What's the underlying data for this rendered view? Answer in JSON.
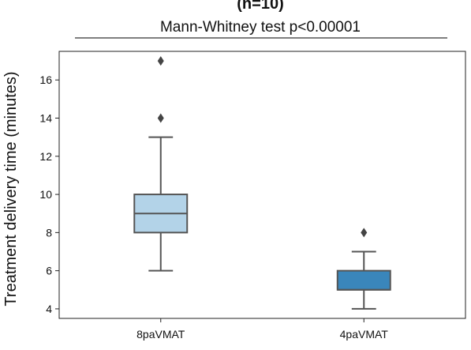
{
  "chart_data": {
    "type": "box",
    "title": "(n=10)",
    "subtitle": "Mann-Whitney  test p<0.00001",
    "xlabel": "",
    "ylabel": "Treatment delivery time (minutes)",
    "categories": [
      "8paVMAT",
      "4paVMAT"
    ],
    "ylim": [
      3.5,
      17.5
    ],
    "yticks": [
      4,
      6,
      8,
      10,
      12,
      14,
      16
    ],
    "grid": false,
    "boxes": [
      {
        "category": "8paVMAT",
        "whisker_low": 6,
        "q1": 8,
        "median": 9,
        "q3": 10,
        "whisker_high": 13,
        "outliers": [
          14,
          17
        ],
        "color": "#b3d3e8"
      },
      {
        "category": "4paVMAT",
        "whisker_low": 4,
        "q1": 5,
        "median": 5,
        "q3": 6,
        "whisker_high": 7,
        "outliers": [
          8
        ],
        "color": "#3a86bb"
      }
    ]
  }
}
